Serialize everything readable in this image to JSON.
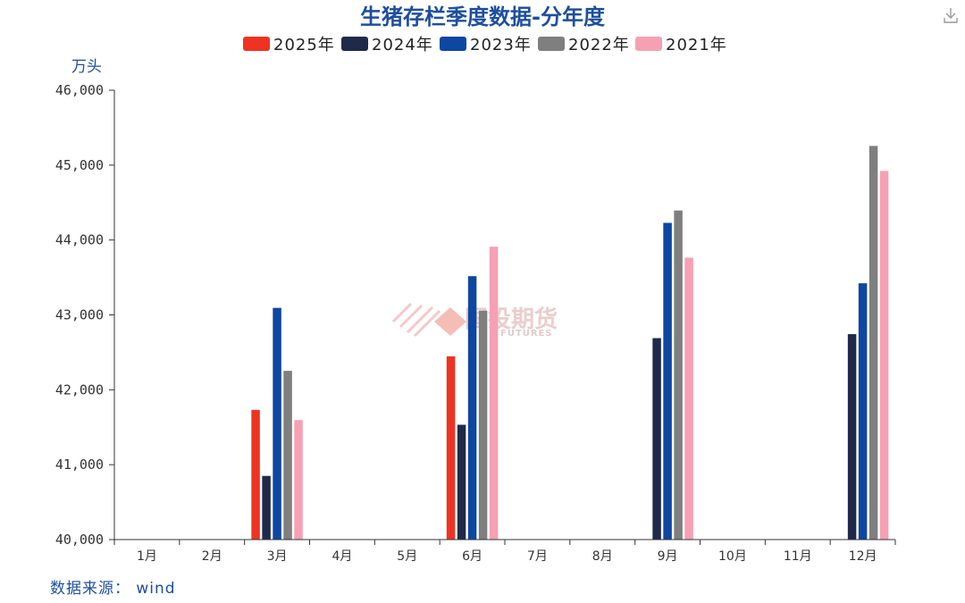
{
  "chart_data": {
    "type": "bar",
    "title": "生猪存栏季度数据-分年度",
    "ylabel": "万头",
    "ylim": [
      40000,
      46000
    ],
    "yticks": [
      "40,000",
      "41,000",
      "42,000",
      "43,000",
      "44,000",
      "45,000",
      "46,000"
    ],
    "ytick_values": [
      40000,
      41000,
      42000,
      43000,
      44000,
      45000,
      46000
    ],
    "categories": [
      "1月",
      "2月",
      "3月",
      "4月",
      "5月",
      "6月",
      "7月",
      "8月",
      "9月",
      "10月",
      "11月",
      "12月"
    ],
    "legend_position": "top",
    "grid": false,
    "series": [
      {
        "name": "2025年",
        "color": "#ee3322",
        "values": [
          null,
          null,
          41731,
          null,
          null,
          42447,
          null,
          null,
          null,
          null,
          null,
          null
        ]
      },
      {
        "name": "2024年",
        "color": "#1f2a4a",
        "values": [
          null,
          null,
          40850,
          null,
          null,
          41533,
          null,
          null,
          42690,
          null,
          null,
          42743
        ]
      },
      {
        "name": "2023年",
        "color": "#0d47a1",
        "values": [
          null,
          null,
          43094,
          null,
          null,
          43517,
          null,
          null,
          44229,
          null,
          null,
          43422
        ]
      },
      {
        "name": "2022年",
        "color": "#7f7f7f",
        "values": [
          null,
          null,
          42253,
          null,
          null,
          43057,
          null,
          null,
          44394,
          null,
          null,
          45256
        ]
      },
      {
        "name": "2021年",
        "color": "#f6a0b4",
        "values": [
          null,
          null,
          41595,
          null,
          null,
          43911,
          null,
          null,
          43764,
          null,
          null,
          44922
        ]
      }
    ]
  },
  "source_label": "数据来源： wind",
  "watermark": {
    "text": "国投期货",
    "sub": "FUTURES"
  },
  "download_icon": "download-icon"
}
